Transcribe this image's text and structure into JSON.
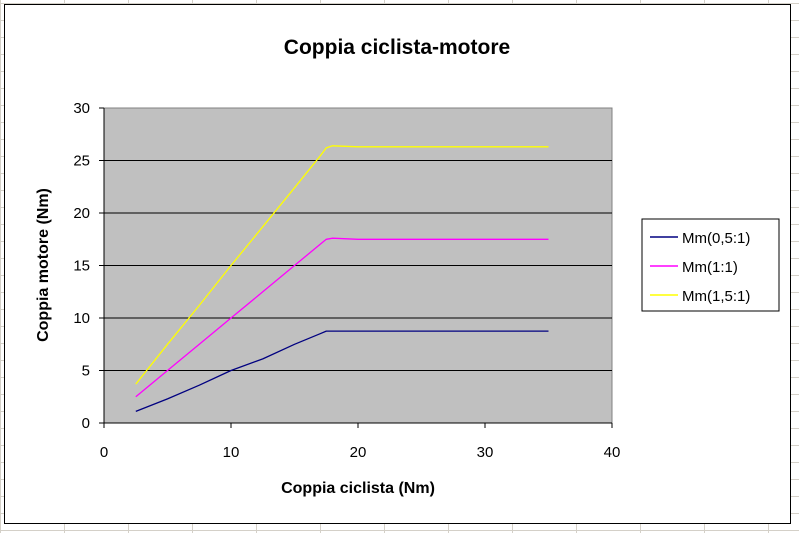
{
  "chart_data": {
    "type": "line",
    "title": "Coppia ciclista-motore",
    "xlabel": "Coppia ciclista (Nm)",
    "ylabel": "Coppia motore (Nm)",
    "xlim": [
      0,
      40
    ],
    "ylim": [
      0,
      30
    ],
    "x_ticks": [
      0,
      10,
      20,
      30,
      40
    ],
    "y_ticks": [
      0,
      5,
      10,
      15,
      20,
      25,
      30
    ],
    "x_tick_labels": [
      "0",
      "10",
      "20",
      "30",
      "40"
    ],
    "y_tick_labels": [
      "0",
      "5",
      "10",
      "15",
      "20",
      "25",
      "30"
    ],
    "grid": "horizontal",
    "plot_background": "#c0c0c0",
    "legend_position": "right",
    "series": [
      {
        "name": "Mm(0,5:1)",
        "color": "#000080",
        "points": [
          [
            2.5,
            1.1
          ],
          [
            5,
            2.3
          ],
          [
            7.5,
            3.6
          ],
          [
            10,
            5.0
          ],
          [
            12.5,
            6.1
          ],
          [
            15,
            7.5
          ],
          [
            17,
            8.5
          ],
          [
            17.5,
            8.75
          ],
          [
            20,
            8.75
          ],
          [
            25,
            8.75
          ],
          [
            30,
            8.75
          ],
          [
            35,
            8.75
          ]
        ]
      },
      {
        "name": "Mm(1:1)",
        "color": "#ff00ff",
        "points": [
          [
            2.5,
            2.5
          ],
          [
            5,
            5.0
          ],
          [
            7.5,
            7.5
          ],
          [
            10,
            10.0
          ],
          [
            12.5,
            12.5
          ],
          [
            15,
            15.0
          ],
          [
            17,
            17.0
          ],
          [
            17.5,
            17.5
          ],
          [
            18,
            17.6
          ],
          [
            20,
            17.5
          ],
          [
            25,
            17.5
          ],
          [
            30,
            17.5
          ],
          [
            35,
            17.5
          ]
        ]
      },
      {
        "name": "Mm(1,5:1)",
        "color": "#ffff00",
        "points": [
          [
            2.5,
            3.7
          ],
          [
            5,
            7.5
          ],
          [
            7.5,
            11.2
          ],
          [
            10,
            15.0
          ],
          [
            12.5,
            18.7
          ],
          [
            15,
            22.4
          ],
          [
            17,
            25.4
          ],
          [
            17.5,
            26.2
          ],
          [
            18,
            26.4
          ],
          [
            20,
            26.3
          ],
          [
            25,
            26.3
          ],
          [
            30,
            26.3
          ],
          [
            35,
            26.3
          ]
        ]
      }
    ]
  }
}
